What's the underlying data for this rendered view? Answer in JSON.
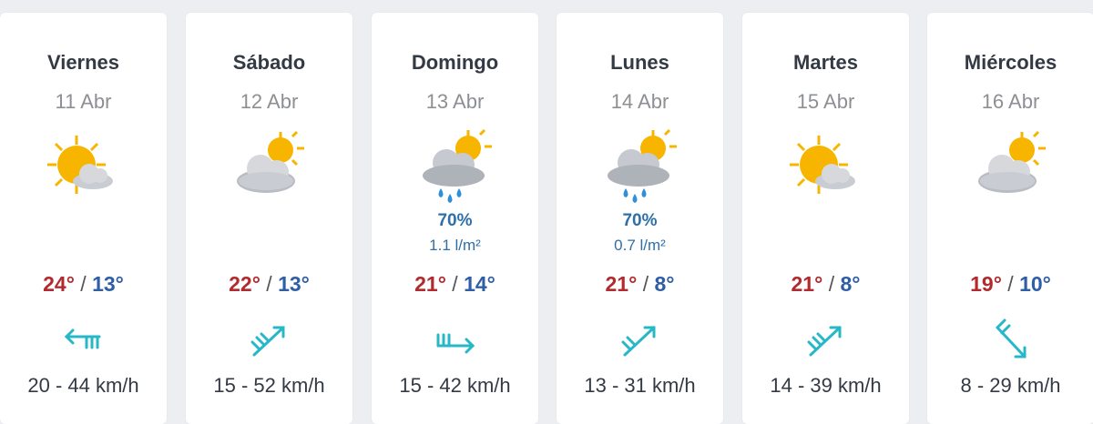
{
  "days": [
    {
      "day": "Viernes",
      "date": "11 Abr",
      "weather_icon": "sun-behind-cloud-icon",
      "rain_prob": "",
      "rain_amount": "",
      "tmax": "24°",
      "tmin": "13°",
      "wind_icon": "wind-arrow-west-icon",
      "wind": "20 - 44 km/h"
    },
    {
      "day": "Sábado",
      "date": "12 Abr",
      "weather_icon": "cloud-with-sun-icon",
      "rain_prob": "",
      "rain_amount": "",
      "tmax": "22°",
      "tmin": "13°",
      "wind_icon": "wind-arrow-northeast-icon",
      "wind": "15 - 52 km/h"
    },
    {
      "day": "Domingo",
      "date": "13 Abr",
      "weather_icon": "cloud-sun-rain-icon",
      "rain_prob": "70%",
      "rain_amount": "1.1 l/m²",
      "tmax": "21°",
      "tmin": "14°",
      "wind_icon": "wind-arrow-east-icon",
      "wind": "15 - 42 km/h"
    },
    {
      "day": "Lunes",
      "date": "14 Abr",
      "weather_icon": "cloud-sun-rain-icon",
      "rain_prob": "70%",
      "rain_amount": "0.7 l/m²",
      "tmax": "21°",
      "tmin": "8°",
      "wind_icon": "wind-arrow-northeast-icon",
      "wind": "13 - 31 km/h"
    },
    {
      "day": "Martes",
      "date": "15 Abr",
      "weather_icon": "sun-behind-cloud-icon",
      "rain_prob": "",
      "rain_amount": "",
      "tmax": "21°",
      "tmin": "8°",
      "wind_icon": "wind-arrow-northeast-icon",
      "wind": "14 - 39 km/h"
    },
    {
      "day": "Miércoles",
      "date": "16 Abr",
      "weather_icon": "cloud-with-sun-icon",
      "rain_prob": "",
      "rain_amount": "",
      "tmax": "19°",
      "tmin": "10°",
      "wind_icon": "wind-arrow-southeast-icon",
      "wind": "8 - 29 km/h"
    }
  ],
  "temp_separator": "/",
  "colors": {
    "tmax": "#b02a2e",
    "tmin": "#2f5ea6",
    "rain": "#2f6fa8",
    "wind_icon": "#27b8c8",
    "sun": "#f7b500",
    "cloud": "#c9ccd2"
  }
}
